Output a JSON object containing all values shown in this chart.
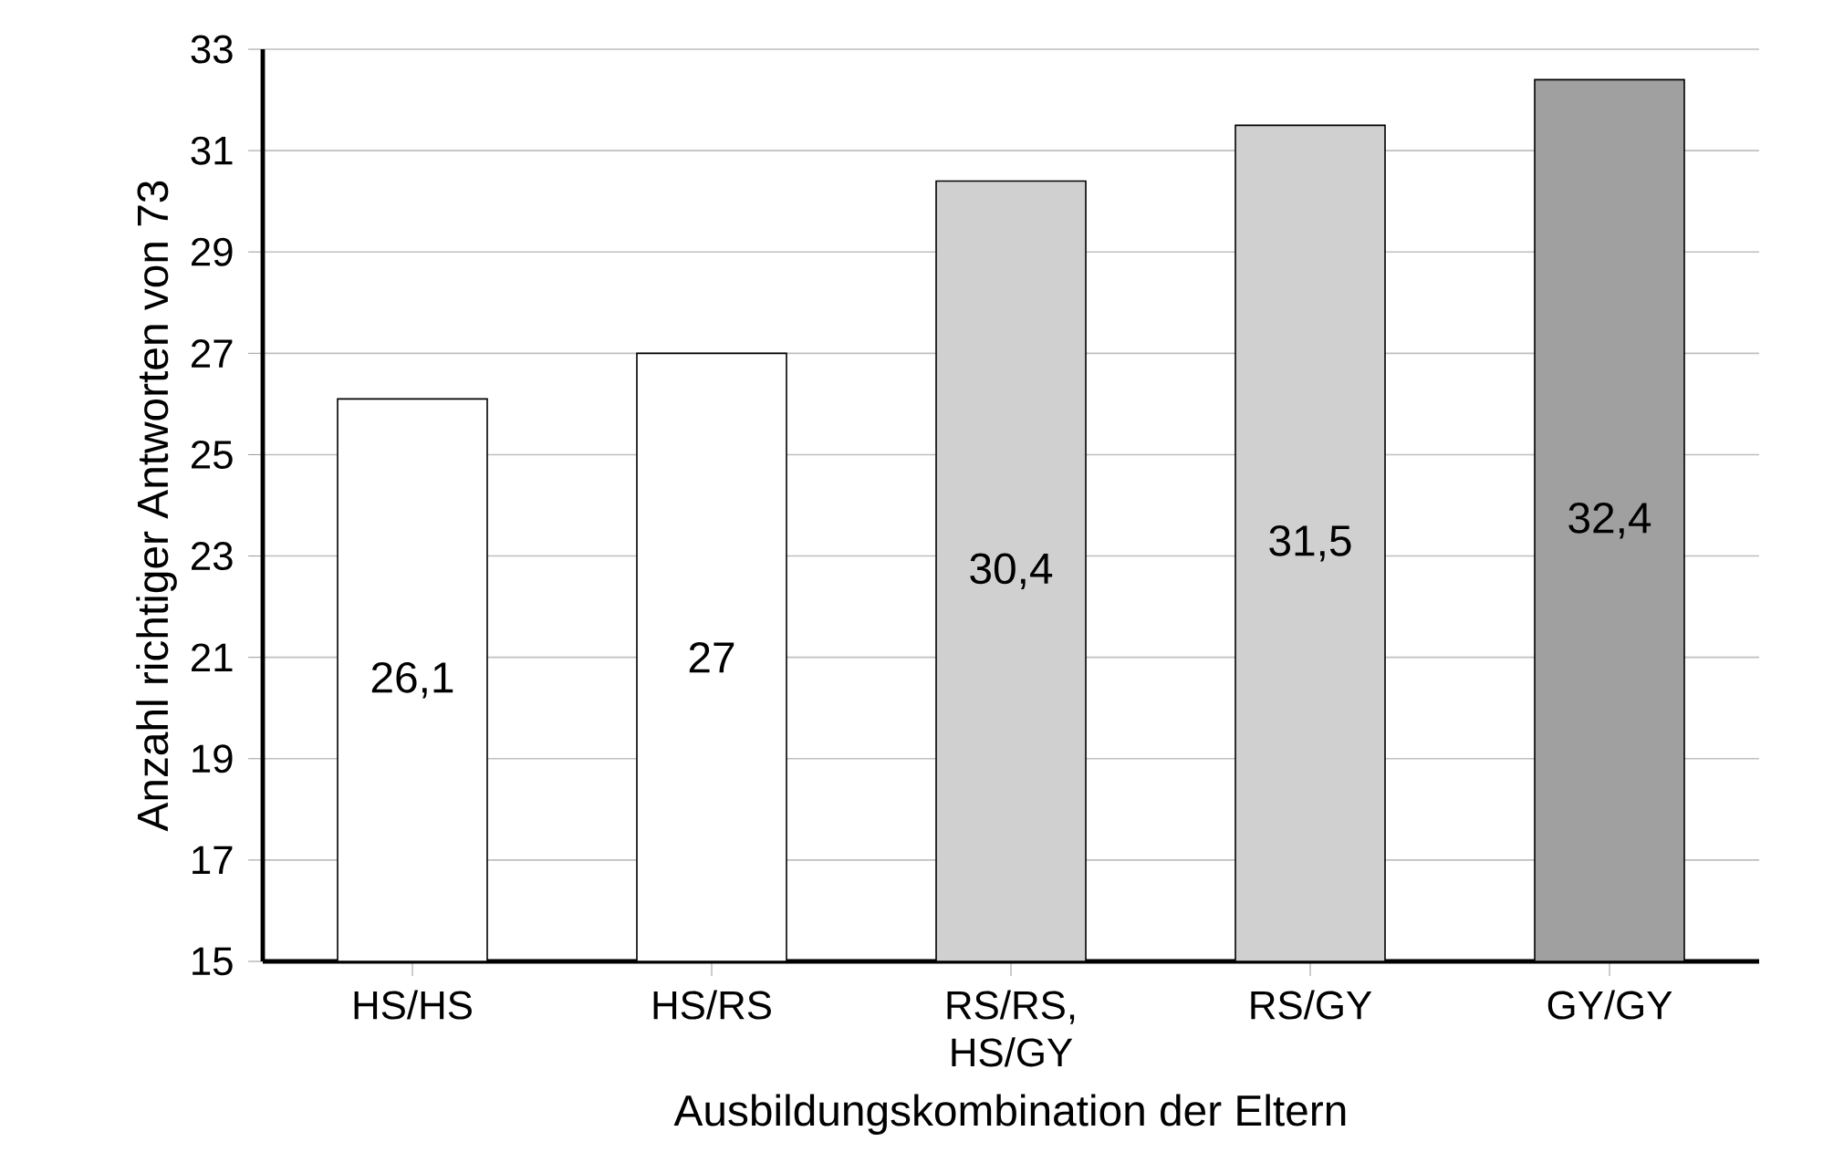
{
  "chart_data": {
    "type": "bar",
    "xlabel": "Ausbildungskombination der Eltern",
    "ylabel": "Anzahl richtiger Antworten von 73",
    "categories": [
      "HS/HS",
      "HS/RS",
      "RS/RS, HS/GY",
      "RS/GY",
      "GY/GY"
    ],
    "values": [
      26.1,
      27,
      30.4,
      31.5,
      32.4
    ],
    "value_labels": [
      "26,1",
      "27",
      "30,4",
      "31,5",
      "32,4"
    ],
    "colors": [
      "#ffffff",
      "#ffffff",
      "#d0d0d0",
      "#d0d0d0",
      "#a0a0a0"
    ],
    "ylim": [
      15,
      33
    ],
    "yticks": [
      15,
      17,
      19,
      21,
      23,
      25,
      27,
      29,
      31,
      33
    ],
    "grid": "y"
  }
}
